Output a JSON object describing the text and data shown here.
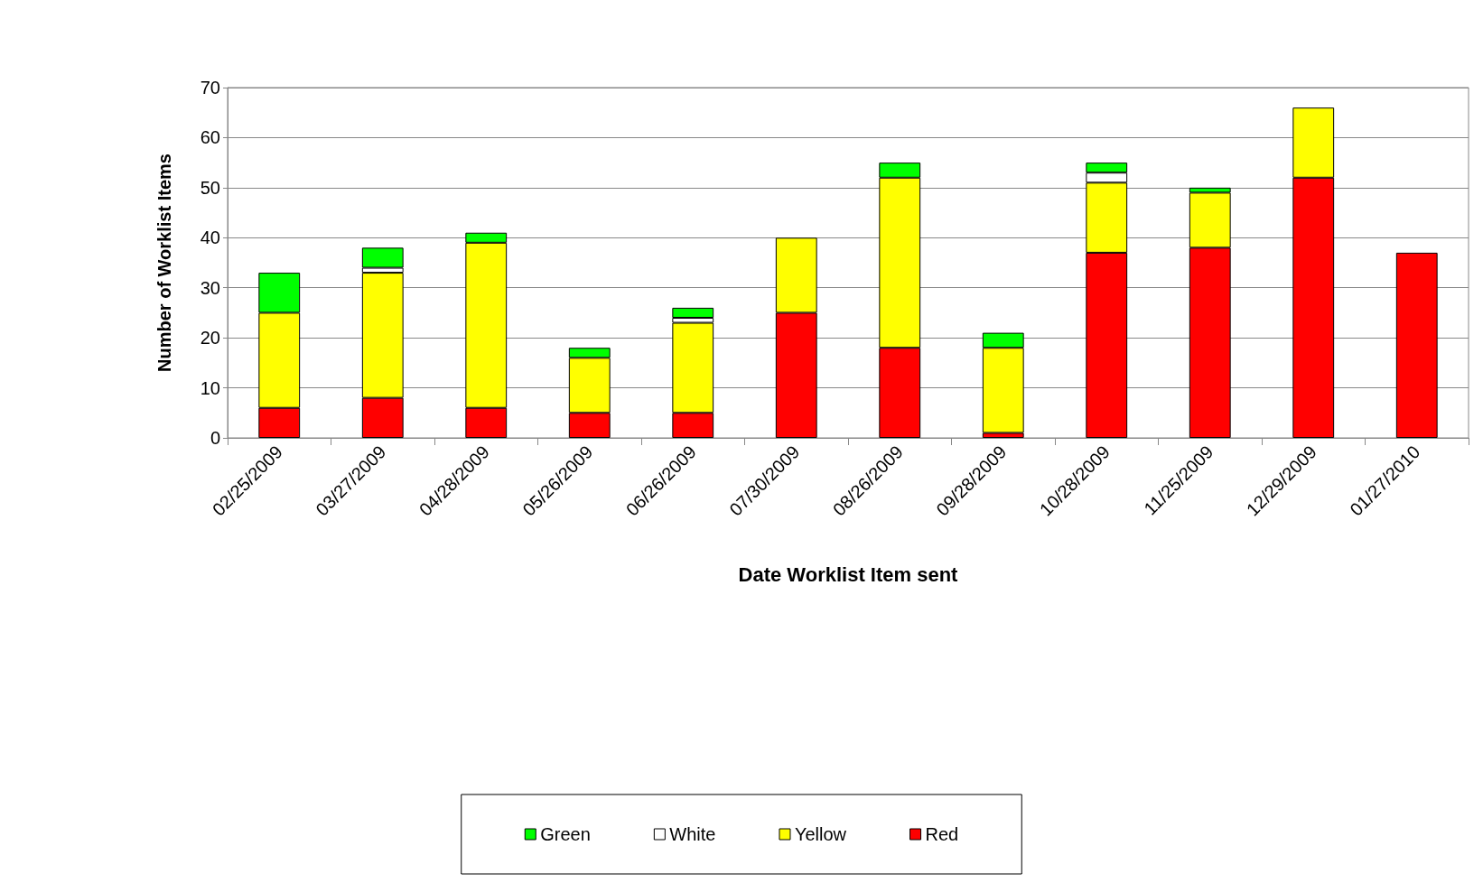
{
  "chart_data": {
    "type": "bar",
    "stacked": true,
    "xlabel": "Date Worklist Item sent",
    "ylabel": "Number of Worklist Items",
    "categories": [
      "02/25/2009",
      "03/27/2009",
      "04/28/2009",
      "05/26/2009",
      "06/26/2009",
      "07/30/2009",
      "08/26/2009",
      "09/28/2009",
      "10/28/2009",
      "11/25/2009",
      "12/29/2009",
      "01/27/2010"
    ],
    "series": [
      {
        "name": "Red",
        "color": "#ff0000",
        "values": [
          6,
          8,
          6,
          5,
          5,
          25,
          18,
          1,
          37,
          38,
          52,
          37
        ]
      },
      {
        "name": "Yellow",
        "color": "#ffff00",
        "values": [
          19,
          25,
          33,
          11,
          18,
          15,
          34,
          17,
          14,
          11,
          14,
          null
        ]
      },
      {
        "name": "White",
        "color": "#ffffff",
        "values": [
          null,
          1,
          null,
          null,
          1,
          null,
          null,
          null,
          2,
          null,
          null,
          null
        ]
      },
      {
        "name": "Green",
        "color": "#00ff00",
        "values": [
          8,
          4,
          2,
          2,
          2,
          null,
          3,
          3,
          2,
          1,
          null,
          null
        ]
      }
    ],
    "ylim": [
      0,
      70
    ],
    "yticks": [
      0,
      10,
      20,
      30,
      40,
      50,
      60,
      70
    ],
    "grid": "y",
    "legend": "bottom"
  }
}
